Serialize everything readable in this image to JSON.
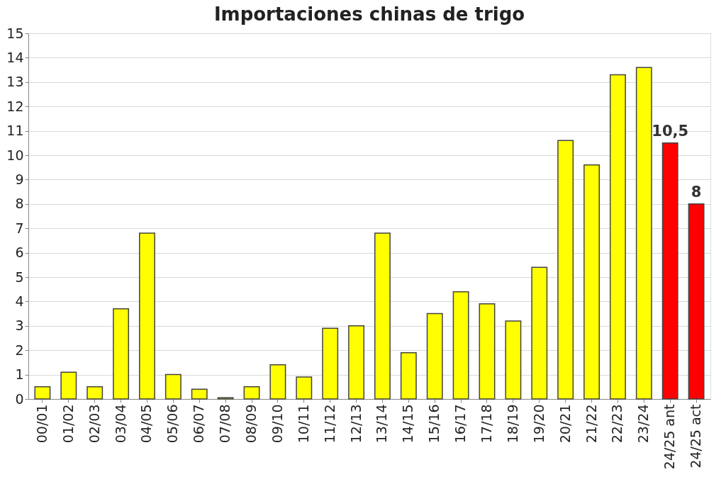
{
  "chart_data": {
    "type": "bar",
    "title": "Importaciones chinas de trigo",
    "categories": [
      "00/01",
      "01/02",
      "02/03",
      "03/04",
      "04/05",
      "05/06",
      "06/07",
      "07/08",
      "08/09",
      "09/10",
      "10/11",
      "11/12",
      "12/13",
      "13/14",
      "14/15",
      "15/16",
      "16/17",
      "17/18",
      "18/19",
      "19/20",
      "20/21",
      "21/22",
      "22/23",
      "23/24",
      "24/25 ant",
      "24/25 act"
    ],
    "values": [
      0.5,
      1.1,
      0.5,
      3.7,
      6.8,
      1.0,
      0.4,
      0.05,
      0.5,
      1.4,
      0.9,
      2.9,
      3.0,
      6.8,
      1.9,
      3.5,
      4.4,
      3.9,
      3.2,
      5.4,
      10.6,
      9.6,
      13.3,
      13.6,
      10.5,
      8
    ],
    "colors": [
      "#ffff00",
      "#ffff00",
      "#ffff00",
      "#ffff00",
      "#ffff00",
      "#ffff00",
      "#ffff00",
      "#ffff00",
      "#ffff00",
      "#ffff00",
      "#ffff00",
      "#ffff00",
      "#ffff00",
      "#ffff00",
      "#ffff00",
      "#ffff00",
      "#ffff00",
      "#ffff00",
      "#ffff00",
      "#ffff00",
      "#ffff00",
      "#ffff00",
      "#ffff00",
      "#ffff00",
      "#ff0000",
      "#ff0000"
    ],
    "value_labels": [
      null,
      null,
      null,
      null,
      null,
      null,
      null,
      null,
      null,
      null,
      null,
      null,
      null,
      null,
      null,
      null,
      null,
      null,
      null,
      null,
      null,
      null,
      null,
      null,
      "10,5",
      "8"
    ],
    "ylim": [
      0,
      15
    ],
    "yticks": [
      0,
      1,
      2,
      3,
      4,
      5,
      6,
      7,
      8,
      9,
      10,
      11,
      12,
      13,
      14,
      15
    ],
    "grid": "y"
  }
}
